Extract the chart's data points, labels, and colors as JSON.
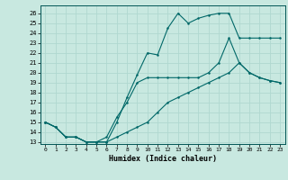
{
  "bg_color": "#c8e8e0",
  "grid_color": "#b0d8d0",
  "line_color": "#006868",
  "xlim": [
    -0.5,
    23.5
  ],
  "ylim": [
    12.8,
    26.8
  ],
  "xticks": [
    0,
    1,
    2,
    3,
    4,
    5,
    6,
    7,
    8,
    9,
    10,
    11,
    12,
    13,
    14,
    15,
    16,
    17,
    18,
    19,
    20,
    21,
    22,
    23
  ],
  "yticks": [
    13,
    14,
    15,
    16,
    17,
    18,
    19,
    20,
    21,
    22,
    23,
    24,
    25,
    26
  ],
  "xlabel": "Humidex (Indice chaleur)",
  "line1_x": [
    0,
    1,
    2,
    3,
    4,
    5,
    6,
    7,
    8,
    9,
    10,
    11,
    12,
    13,
    14,
    15,
    16,
    17,
    18,
    19,
    20,
    21,
    22,
    23
  ],
  "line1_y": [
    15.0,
    14.5,
    13.5,
    13.5,
    13.0,
    13.0,
    13.0,
    15.0,
    17.5,
    19.8,
    22.0,
    21.8,
    24.5,
    26.0,
    25.0,
    25.5,
    25.8,
    26.0,
    26.0,
    23.5,
    23.5,
    23.5,
    23.5,
    23.5
  ],
  "line2_x": [
    0,
    1,
    2,
    3,
    4,
    5,
    6,
    7,
    8,
    9,
    10,
    11,
    12,
    13,
    14,
    15,
    16,
    17,
    18,
    19,
    20,
    21,
    22,
    23
  ],
  "line2_y": [
    15.0,
    14.5,
    13.5,
    13.5,
    13.0,
    13.0,
    13.0,
    13.5,
    14.0,
    14.5,
    15.0,
    16.0,
    17.0,
    17.5,
    18.0,
    18.5,
    19.0,
    19.5,
    20.0,
    21.0,
    20.0,
    19.5,
    19.2,
    19.0
  ],
  "line3_x": [
    0,
    1,
    2,
    3,
    4,
    5,
    6,
    7,
    8,
    9,
    10,
    11,
    12,
    13,
    14,
    15,
    16,
    17,
    18,
    19,
    20,
    21,
    22,
    23
  ],
  "line3_y": [
    15.0,
    14.5,
    13.5,
    13.5,
    13.0,
    13.0,
    13.5,
    15.5,
    17.0,
    19.0,
    19.5,
    19.5,
    19.5,
    19.5,
    19.5,
    19.5,
    20.0,
    21.0,
    23.5,
    21.0,
    20.0,
    19.5,
    19.2,
    19.0
  ]
}
